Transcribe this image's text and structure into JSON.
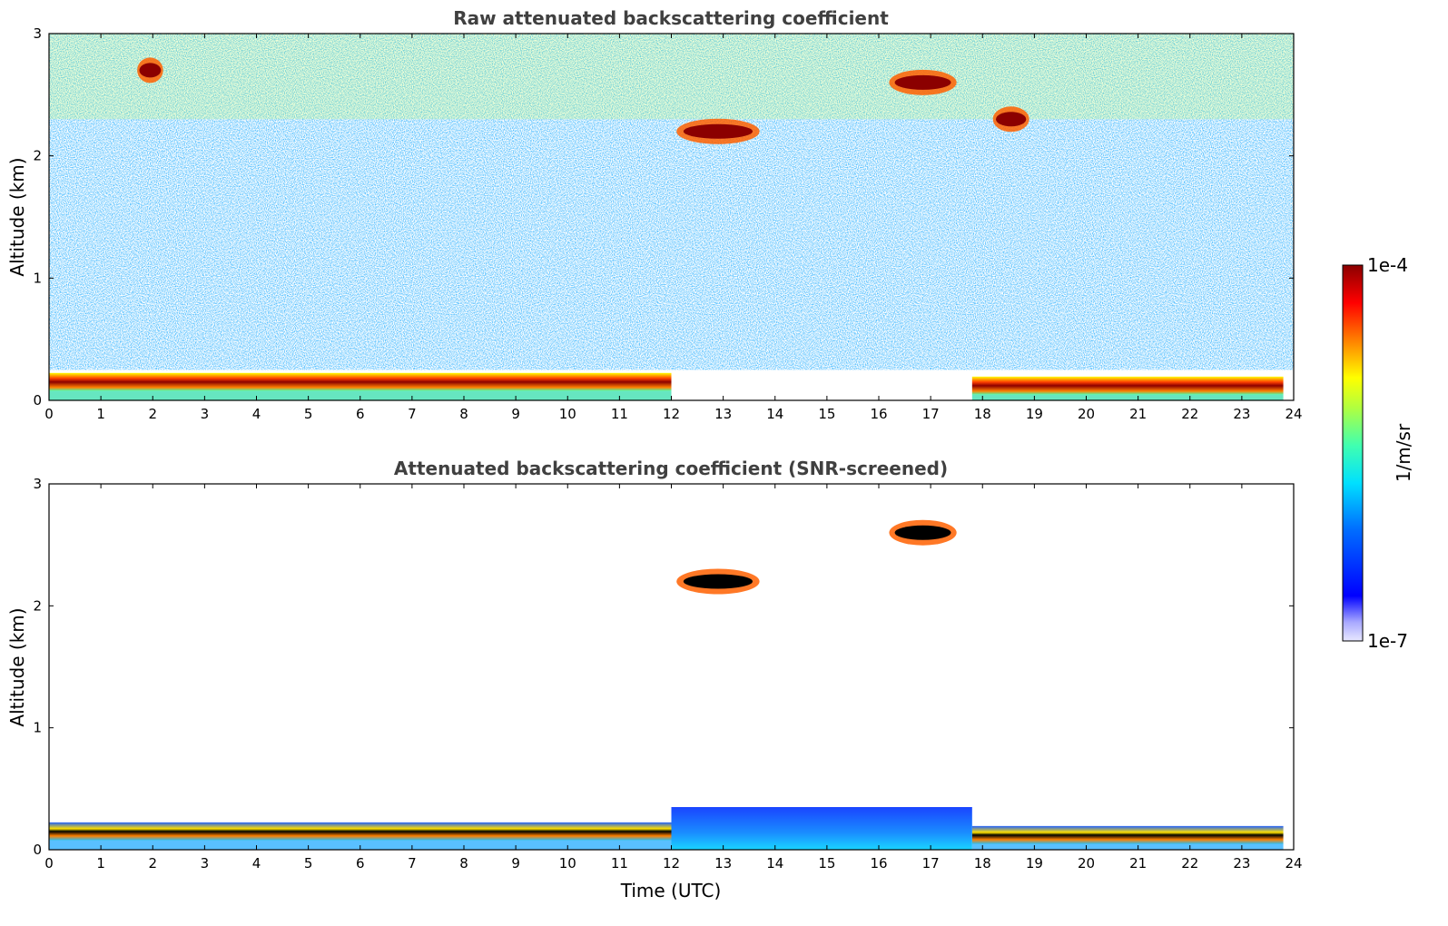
{
  "chart_data": [
    {
      "type": "heatmap",
      "title": "Raw attenuated backscattering coefficient",
      "xlabel": "",
      "ylabel": "Altitude (km)",
      "xlim": [
        0,
        24
      ],
      "ylim": [
        0,
        3
      ],
      "xticks": [
        "0",
        "1",
        "2",
        "3",
        "4",
        "5",
        "6",
        "7",
        "8",
        "9",
        "10",
        "11",
        "12",
        "13",
        "14",
        "15",
        "16",
        "17",
        "18",
        "19",
        "20",
        "21",
        "22",
        "23",
        "24"
      ],
      "yticks": [
        "0",
        "1",
        "2",
        "3"
      ],
      "features": [
        {
          "kind": "boundary_layer",
          "x_start": 0.0,
          "x_end": 12.0,
          "altitude_km": 0.15,
          "value_level": "high"
        },
        {
          "kind": "boundary_layer",
          "x_start": 17.8,
          "x_end": 23.8,
          "altitude_km": 0.12,
          "value_level": "high"
        },
        {
          "kind": "cloud",
          "x_start": 12.1,
          "x_end": 13.7,
          "altitude_km": 2.2,
          "value_level": "high"
        },
        {
          "kind": "cloud",
          "x_start": 16.2,
          "x_end": 17.5,
          "altitude_km": 2.6,
          "value_level": "high"
        },
        {
          "kind": "cloud",
          "x_start": 18.2,
          "x_end": 18.9,
          "altitude_km": 2.3,
          "value_level": "high"
        },
        {
          "kind": "cloud",
          "x_start": 1.7,
          "x_end": 2.2,
          "altitude_km": 2.7,
          "value_level": "high"
        }
      ]
    },
    {
      "type": "heatmap",
      "title": "Attenuated backscattering coefficient (SNR-screened)",
      "xlabel": "Time (UTC)",
      "ylabel": "Altitude (km)",
      "xlim": [
        0,
        24
      ],
      "ylim": [
        0,
        3
      ],
      "xticks": [
        "0",
        "1",
        "2",
        "3",
        "4",
        "5",
        "6",
        "7",
        "8",
        "9",
        "10",
        "11",
        "12",
        "13",
        "14",
        "15",
        "16",
        "17",
        "18",
        "19",
        "20",
        "21",
        "22",
        "23",
        "24"
      ],
      "yticks": [
        "0",
        "1",
        "2",
        "3"
      ],
      "features": [
        {
          "kind": "boundary_layer",
          "x_start": 0.0,
          "x_end": 12.0,
          "altitude_km": 0.15,
          "value_level": "saturated"
        },
        {
          "kind": "boundary_layer",
          "x_start": 17.8,
          "x_end": 23.8,
          "altitude_km": 0.12,
          "value_level": "saturated"
        },
        {
          "kind": "cloud",
          "x_start": 12.1,
          "x_end": 13.7,
          "altitude_km": 2.2,
          "value_level": "saturated"
        },
        {
          "kind": "cloud",
          "x_start": 16.2,
          "x_end": 17.5,
          "altitude_km": 2.6,
          "value_level": "saturated"
        },
        {
          "kind": "aerosol_layer",
          "x_start": 12.0,
          "x_end": 17.8,
          "altitude_km": 0.35,
          "value_level": "low"
        }
      ]
    }
  ],
  "colorbar": {
    "label": "1/m/sr",
    "max_label": "1e-4",
    "min_label": "1e-7",
    "colormap": "jet",
    "colors": [
      "#0000a0",
      "#0000ff",
      "#00a0ff",
      "#00ffff",
      "#80ff80",
      "#ffff00",
      "#ff8000",
      "#ff0000",
      "#800000"
    ],
    "scale": "log"
  }
}
